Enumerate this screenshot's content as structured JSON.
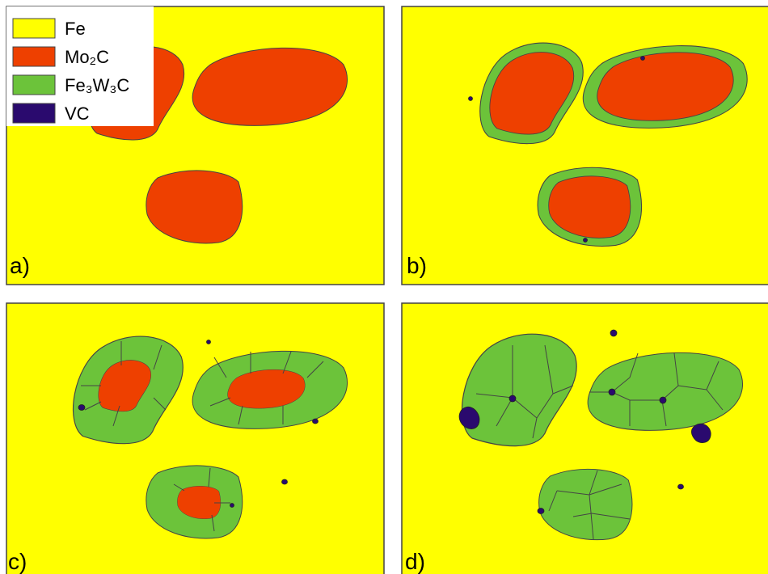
{
  "legend": {
    "items": [
      "Fe",
      "Mo₂C",
      "Fe₃W₃C",
      "VC"
    ]
  },
  "panels": [
    {
      "label": "a)"
    },
    {
      "label": "b)"
    },
    {
      "label": "c)"
    },
    {
      "label": "d)"
    }
  ]
}
